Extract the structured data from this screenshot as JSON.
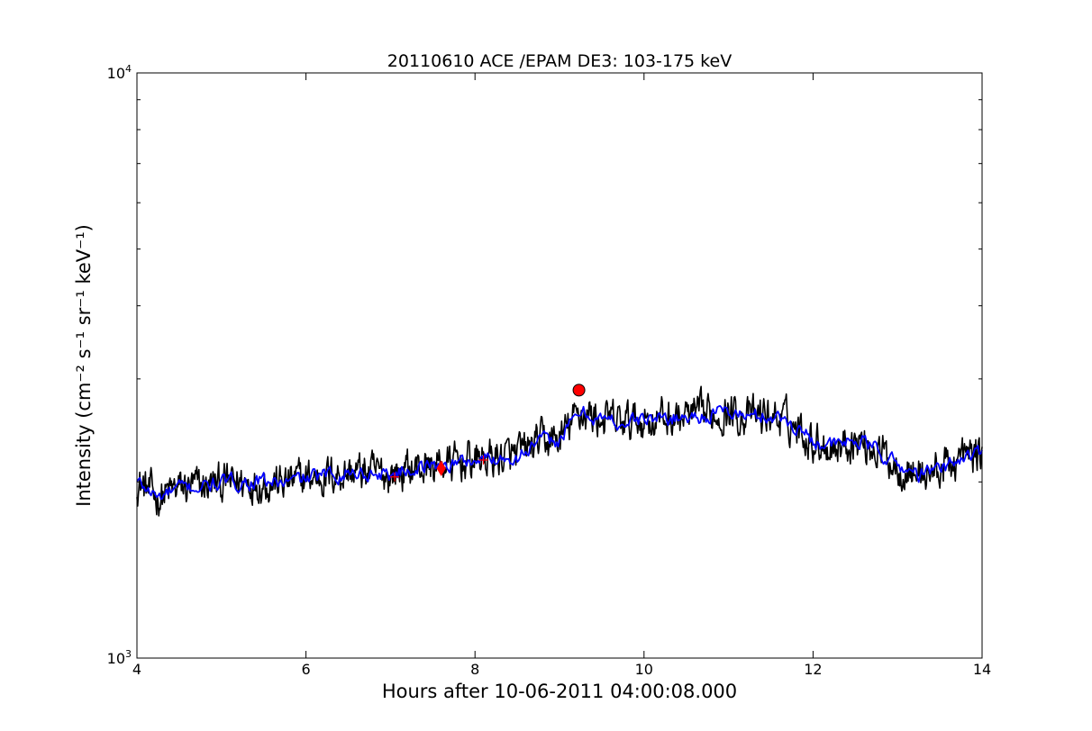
{
  "chart_data": {
    "type": "line",
    "title": "20110610 ACE /EPAM DE3: 103-175 keV",
    "xlabel": "Hours after 10-06-2011 04:00:08.000",
    "ylabel": "Intensity (cm⁻² s⁻¹ sr⁻¹ keV⁻¹)",
    "yscale": "log",
    "xlim": [
      4,
      14
    ],
    "ylim": [
      1000,
      10000
    ],
    "x_ticks": [
      4,
      6,
      8,
      10,
      12,
      14
    ],
    "x_tick_labels": [
      "4",
      "6",
      "8",
      "10",
      "12",
      "14"
    ],
    "y_tick_labels": [
      {
        "value": 1000,
        "base": "10",
        "exp": "3"
      },
      {
        "value": 10000,
        "base": "10",
        "exp": "4"
      }
    ],
    "grid": false,
    "colors": {
      "raw": "#000000",
      "smoothed": "#0000ff",
      "markers": "#ff0000"
    },
    "series": [
      {
        "role": "raw",
        "x": [
          4.0,
          4.25,
          4.5,
          4.75,
          5.0,
          5.25,
          5.5,
          5.75,
          6.0,
          6.25,
          6.5,
          6.75,
          7.0,
          7.25,
          7.5,
          7.75,
          8.0,
          8.25,
          8.5,
          8.75,
          9.0,
          9.25,
          9.5,
          9.75,
          10.0,
          10.25,
          10.5,
          10.75,
          11.0,
          11.25,
          11.5,
          11.75,
          12.0,
          12.25,
          12.5,
          12.75,
          13.0,
          13.25,
          13.5,
          13.75,
          14.0
        ],
        "y": [
          2000,
          1880,
          1950,
          1960,
          1990,
          2000,
          2000,
          1990,
          2030,
          2050,
          2080,
          2070,
          2060,
          2110,
          2130,
          2150,
          2180,
          2200,
          2210,
          2340,
          2360,
          2640,
          2560,
          2520,
          2560,
          2570,
          2580,
          2600,
          2640,
          2580,
          2600,
          2520,
          2360,
          2300,
          2360,
          2280,
          2130,
          2060,
          2100,
          2200,
          2250
        ]
      },
      {
        "role": "smoothed",
        "x": [
          4.0,
          4.25,
          4.5,
          4.75,
          5.0,
          5.25,
          5.5,
          5.75,
          6.0,
          6.25,
          6.5,
          6.75,
          7.0,
          7.25,
          7.5,
          7.75,
          8.0,
          8.25,
          8.5,
          8.75,
          9.0,
          9.25,
          9.5,
          9.75,
          10.0,
          10.25,
          10.5,
          10.75,
          11.0,
          11.25,
          11.5,
          11.75,
          12.0,
          12.25,
          12.5,
          12.75,
          13.0,
          13.25,
          13.5,
          13.75,
          14.0
        ],
        "y": [
          2000,
          1880,
          1950,
          1960,
          1990,
          2000,
          2000,
          1990,
          2030,
          2050,
          2080,
          2070,
          2060,
          2110,
          2130,
          2150,
          2180,
          2200,
          2210,
          2340,
          2360,
          2640,
          2560,
          2520,
          2560,
          2570,
          2580,
          2600,
          2640,
          2580,
          2600,
          2520,
          2360,
          2300,
          2360,
          2280,
          2130,
          2060,
          2100,
          2200,
          2250
        ]
      }
    ],
    "markers": [
      {
        "shape": "circle",
        "x": 9.23,
        "y": 2870
      },
      {
        "shape": "diamond",
        "x": 7.6,
        "y": 2110
      },
      {
        "shape": "plus",
        "x": 7.05,
        "y": 2040
      },
      {
        "shape": "plus",
        "x": 8.1,
        "y": 2180
      }
    ]
  }
}
